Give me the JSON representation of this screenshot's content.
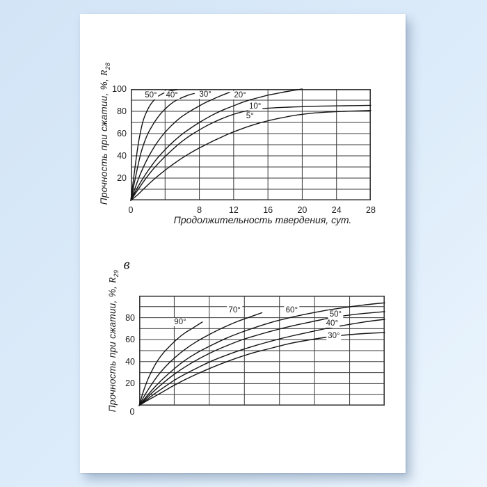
{
  "page": {
    "figure_label": "в",
    "colors": {
      "background_top": "#d2e4f6",
      "background_bottom": "#ecf5fd",
      "paper": "#ffffff",
      "ink": "#1c1c1c",
      "grid": "#3a3a3a",
      "curve": "#141414"
    }
  },
  "chart_data": [
    {
      "id": "hardening-normal-temperatures",
      "type": "line",
      "title": "",
      "xlabel": "Продолжительность твердения, сут.",
      "ylabel_prefix": "Прочность при сжатии, %, ",
      "ylabel_symbol": "R",
      "ylabel_subscript": "28",
      "xlim": [
        0,
        28
      ],
      "ylim": [
        0,
        100
      ],
      "x_grid_step": 4,
      "y_grid_step": 10,
      "grid": true,
      "legend_position": "labels-on-curves",
      "x_ticks": [
        0,
        8,
        12,
        16,
        20,
        24,
        28
      ],
      "y_ticks": [
        100,
        80,
        60,
        40,
        20
      ],
      "series": [
        {
          "name": "50C",
          "label": "50°",
          "label_at": [
            2.35,
            94.5
          ],
          "points": [
            [
              0,
              0
            ],
            [
              0.3,
              18
            ],
            [
              0.6,
              36
            ],
            [
              0.9,
              52
            ],
            [
              1.2,
              64
            ],
            [
              1.5,
              73
            ],
            [
              1.9,
              80.5
            ],
            [
              2.3,
              86
            ],
            [
              2.7,
              90
            ],
            [
              3.1,
              93
            ],
            [
              3.6,
              95.5
            ],
            [
              4.1,
              97.2
            ],
            [
              4.7,
              98.5
            ],
            [
              5.4,
              99.5
            ]
          ]
        },
        {
          "name": "40C",
          "label": "40°",
          "label_at": [
            4.8,
            94.5
          ],
          "points": [
            [
              0,
              0
            ],
            [
              0.4,
              15
            ],
            [
              0.8,
              30
            ],
            [
              1.2,
              43
            ],
            [
              1.6,
              52.5
            ],
            [
              2,
              60
            ],
            [
              2.5,
              67
            ],
            [
              3,
              73
            ],
            [
              3.5,
              78
            ],
            [
              4,
              82
            ],
            [
              4.5,
              85.5
            ],
            [
              5,
              88.5
            ],
            [
              5.6,
              91
            ],
            [
              6.2,
              93
            ],
            [
              6.8,
              94.8
            ],
            [
              7.4,
              96
            ]
          ]
        },
        {
          "name": "30C",
          "label": "30°",
          "label_at": [
            8.7,
            95
          ],
          "points": [
            [
              0,
              0
            ],
            [
              0.5,
              11
            ],
            [
              1,
              21.5
            ],
            [
              1.6,
              32
            ],
            [
              2.2,
              41
            ],
            [
              2.9,
              50
            ],
            [
              3.6,
              57.5
            ],
            [
              4.4,
              64.5
            ],
            [
              5.2,
              70.5
            ],
            [
              6,
              75.5
            ],
            [
              6.9,
              80
            ],
            [
              7.8,
              84
            ],
            [
              8.7,
              87.8
            ],
            [
              9.6,
              91
            ],
            [
              10.5,
              94
            ],
            [
              11.5,
              97
            ]
          ]
        },
        {
          "name": "20C",
          "label": "20°",
          "label_at": [
            12.75,
            94.5
          ],
          "points": [
            [
              0,
              0
            ],
            [
              0.6,
              9
            ],
            [
              1.2,
              17
            ],
            [
              2,
              26.5
            ],
            [
              3,
              37
            ],
            [
              4,
              45.5
            ],
            [
              5,
              53
            ],
            [
              6,
              59.5
            ],
            [
              7,
              65
            ],
            [
              8,
              70
            ],
            [
              9,
              74.5
            ],
            [
              10,
              78.5
            ],
            [
              11,
              82
            ],
            [
              12,
              85
            ],
            [
              13,
              88
            ],
            [
              14,
              90.5
            ],
            [
              15,
              92.5
            ],
            [
              16,
              94.5
            ],
            [
              17,
              96
            ],
            [
              18,
              97.5
            ],
            [
              19,
              98.8
            ],
            [
              20,
              100
            ]
          ]
        },
        {
          "name": "10C",
          "label": "10°",
          "label_at": [
            14.5,
            84.5
          ],
          "points": [
            [
              0,
              0
            ],
            [
              0.7,
              8
            ],
            [
              1.5,
              17
            ],
            [
              2.5,
              27
            ],
            [
              3.5,
              35.5
            ],
            [
              4.5,
              43
            ],
            [
              5.5,
              50
            ],
            [
              6.5,
              56
            ],
            [
              7.5,
              61
            ],
            [
              8.5,
              65.5
            ],
            [
              9.5,
              69.5
            ],
            [
              10.5,
              73
            ],
            [
              11.5,
              76
            ],
            [
              12.5,
              78.5
            ],
            [
              13.5,
              80.3
            ],
            [
              14.5,
              81.5
            ],
            [
              16,
              82.8
            ],
            [
              18,
              83.6
            ],
            [
              20,
              84.2
            ],
            [
              22,
              84.6
            ],
            [
              25,
              85
            ],
            [
              28,
              85.4
            ]
          ]
        },
        {
          "name": "5C",
          "label": "5°",
          "label_at": [
            13.9,
            75.5
          ],
          "points": [
            [
              0,
              0
            ],
            [
              0.8,
              5
            ],
            [
              1.6,
              11
            ],
            [
              2.5,
              17.5
            ],
            [
              3.5,
              24
            ],
            [
              4.5,
              30
            ],
            [
              5.5,
              35.5
            ],
            [
              6.5,
              40.5
            ],
            [
              7.5,
              45
            ],
            [
              8.5,
              49
            ],
            [
              9.5,
              53
            ],
            [
              10.5,
              56.5
            ],
            [
              11.5,
              60
            ],
            [
              12.5,
              63
            ],
            [
              13.5,
              65.8
            ],
            [
              14.5,
              68.3
            ],
            [
              15.5,
              70.5
            ],
            [
              16.5,
              72.4
            ],
            [
              17.5,
              74
            ],
            [
              18.5,
              75.5
            ],
            [
              19.5,
              76.8
            ],
            [
              21,
              78.2
            ],
            [
              23,
              79.3
            ],
            [
              25,
              80
            ],
            [
              28,
              80.8
            ]
          ]
        }
      ]
    },
    {
      "id": "hardening-elevated-temperatures",
      "type": "line",
      "title": "",
      "xlabel": "",
      "ylabel_prefix": "Прочность при сжатии, %, ",
      "ylabel_symbol": "R",
      "ylabel_subscript": "29",
      "xlim": [
        0,
        7
      ],
      "ylim": [
        0,
        100
      ],
      "x_grid_step": 1,
      "y_grid_step": 10,
      "grid": true,
      "legend_position": "labels-on-curves",
      "x_ticks": [],
      "y_ticks": [
        80,
        60,
        40,
        20
      ],
      "zero_label": "0",
      "series": [
        {
          "name": "90C",
          "label": "90°",
          "label_at": [
            1.17,
            76
          ],
          "points": [
            [
              0,
              0
            ],
            [
              0.12,
              13
            ],
            [
              0.25,
              24
            ],
            [
              0.4,
              34
            ],
            [
              0.55,
              42
            ],
            [
              0.72,
              49
            ],
            [
              0.9,
              55
            ],
            [
              1.1,
              61
            ],
            [
              1.3,
              66
            ],
            [
              1.55,
              71
            ],
            [
              1.8,
              76
            ]
          ]
        },
        {
          "name": "70C",
          "label": "70°",
          "label_at": [
            2.72,
            86.5
          ],
          "points": [
            [
              0,
              0
            ],
            [
              0.15,
              9
            ],
            [
              0.35,
              19
            ],
            [
              0.55,
              28
            ],
            [
              0.8,
              37
            ],
            [
              1.05,
              44.5
            ],
            [
              1.3,
              51
            ],
            [
              1.6,
              57.5
            ],
            [
              1.9,
              63
            ],
            [
              2.2,
              68
            ],
            [
              2.5,
              72.5
            ],
            [
              2.8,
              76.5
            ],
            [
              3.15,
              80.5
            ],
            [
              3.5,
              84.5
            ]
          ]
        },
        {
          "name": "60C",
          "label": "60°",
          "label_at": [
            4.35,
            86.5
          ],
          "points": [
            [
              0,
              0
            ],
            [
              0.2,
              8
            ],
            [
              0.45,
              17
            ],
            [
              0.7,
              25
            ],
            [
              1,
              33.5
            ],
            [
              1.3,
              41
            ],
            [
              1.7,
              49
            ],
            [
              2.1,
              55.5
            ],
            [
              2.5,
              61.5
            ],
            [
              2.9,
              66.5
            ],
            [
              3.3,
              71
            ],
            [
              3.8,
              76
            ],
            [
              4.3,
              80
            ],
            [
              4.8,
              83.5
            ],
            [
              5.3,
              86.5
            ],
            [
              5.8,
              89
            ],
            [
              6.4,
              91.5
            ],
            [
              7,
              93.5
            ]
          ]
        },
        {
          "name": "50C",
          "label": "50°",
          "label_at": [
            5.6,
            83
          ],
          "points": [
            [
              0,
              0
            ],
            [
              0.2,
              6.5
            ],
            [
              0.45,
              14
            ],
            [
              0.7,
              21
            ],
            [
              1,
              28.5
            ],
            [
              1.3,
              35
            ],
            [
              1.7,
              42.5
            ],
            [
              2.1,
              49
            ],
            [
              2.5,
              54.5
            ],
            [
              2.9,
              59.5
            ],
            [
              3.3,
              63.5
            ],
            [
              3.8,
              68
            ],
            [
              4.3,
              72
            ],
            [
              4.8,
              75.5
            ],
            [
              5.3,
              78.8
            ],
            [
              5.8,
              81.5
            ],
            [
              6.4,
              83.8
            ],
            [
              7,
              85.5
            ]
          ]
        },
        {
          "name": "40C",
          "label": "40°",
          "label_at": [
            5.5,
            74.5
          ],
          "points": [
            [
              0,
              0
            ],
            [
              0.2,
              5
            ],
            [
              0.45,
              11
            ],
            [
              0.7,
              16.5
            ],
            [
              1,
              23
            ],
            [
              1.3,
              28.5
            ],
            [
              1.7,
              35
            ],
            [
              2.1,
              41
            ],
            [
              2.5,
              46
            ],
            [
              2.9,
              50.5
            ],
            [
              3.3,
              54.5
            ],
            [
              3.8,
              59
            ],
            [
              4.3,
              63
            ],
            [
              4.8,
              66.5
            ],
            [
              5.3,
              70
            ],
            [
              5.8,
              72.8
            ],
            [
              6.4,
              76
            ],
            [
              7,
              78.5
            ]
          ]
        },
        {
          "name": "30C",
          "label": "30°",
          "label_at": [
            5.55,
            63.5
          ],
          "points": [
            [
              0,
              0
            ],
            [
              0.2,
              4
            ],
            [
              0.45,
              8.5
            ],
            [
              0.7,
              13
            ],
            [
              1,
              18.5
            ],
            [
              1.3,
              23.5
            ],
            [
              1.7,
              29.5
            ],
            [
              2.1,
              35
            ],
            [
              2.5,
              40
            ],
            [
              2.9,
              44.5
            ],
            [
              3.3,
              48.5
            ],
            [
              3.8,
              52.5
            ],
            [
              4.3,
              56.5
            ],
            [
              4.8,
              59.5
            ],
            [
              5.3,
              62
            ],
            [
              5.8,
              64
            ],
            [
              6.4,
              65.5
            ],
            [
              7,
              66.5
            ]
          ]
        }
      ]
    }
  ]
}
